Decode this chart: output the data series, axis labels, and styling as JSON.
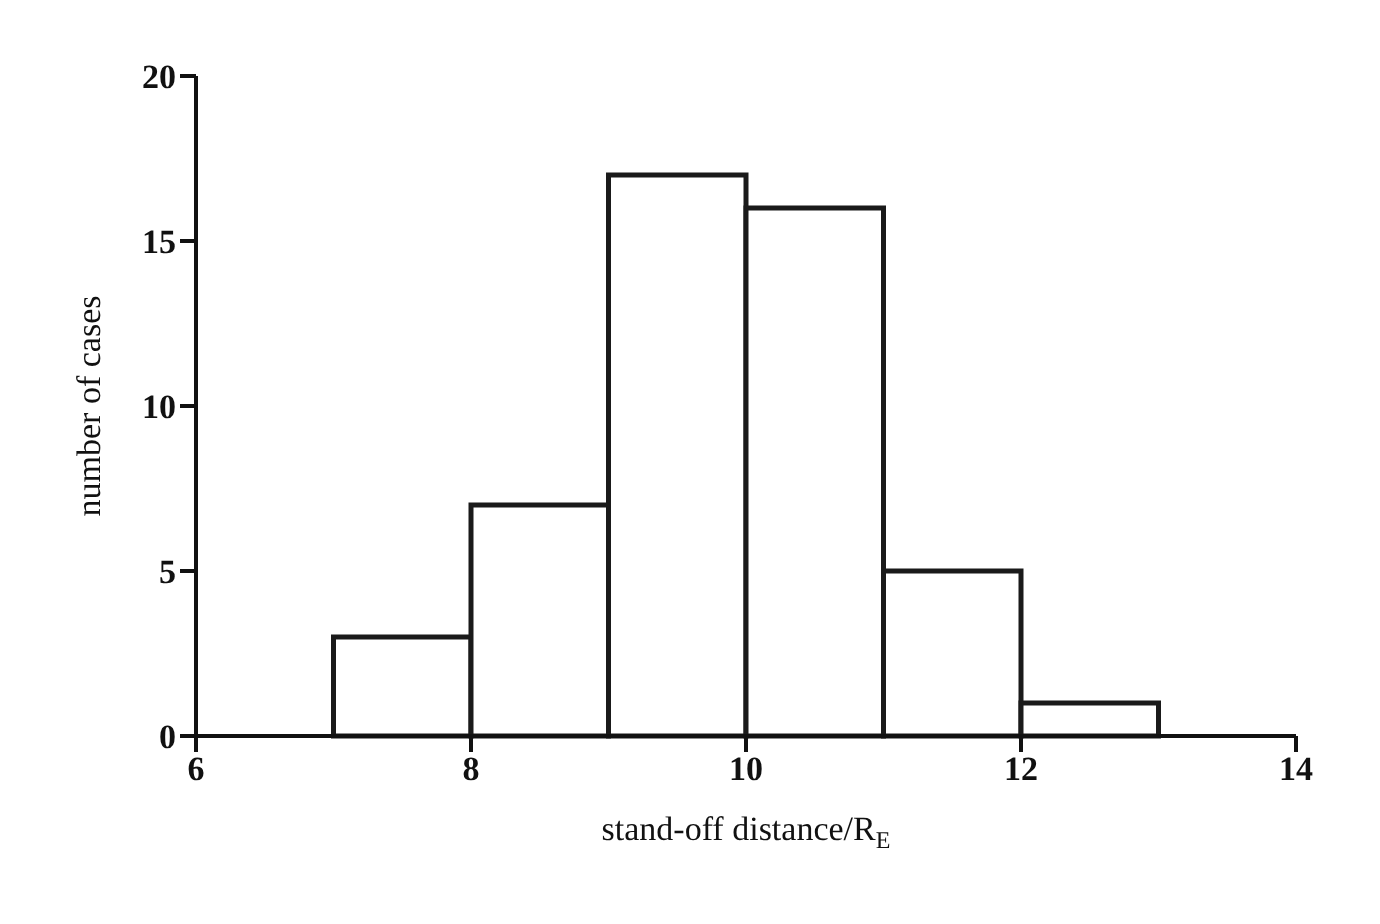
{
  "chart_data": {
    "type": "histogram",
    "xlabel": "stand-off distance/R$_{E}$",
    "ylabel": "number of cases",
    "bins": [
      7,
      8,
      9,
      10,
      11,
      12,
      13
    ],
    "values": [
      3,
      7,
      17,
      16,
      5,
      1
    ],
    "color": "#1a1a1a",
    "xlim": [
      6,
      14
    ],
    "xticks": [
      6,
      8,
      10,
      12,
      14
    ],
    "ylim": [
      0,
      20
    ],
    "yticks": [
      0,
      5,
      10,
      15,
      20
    ],
    "grid": false
  }
}
